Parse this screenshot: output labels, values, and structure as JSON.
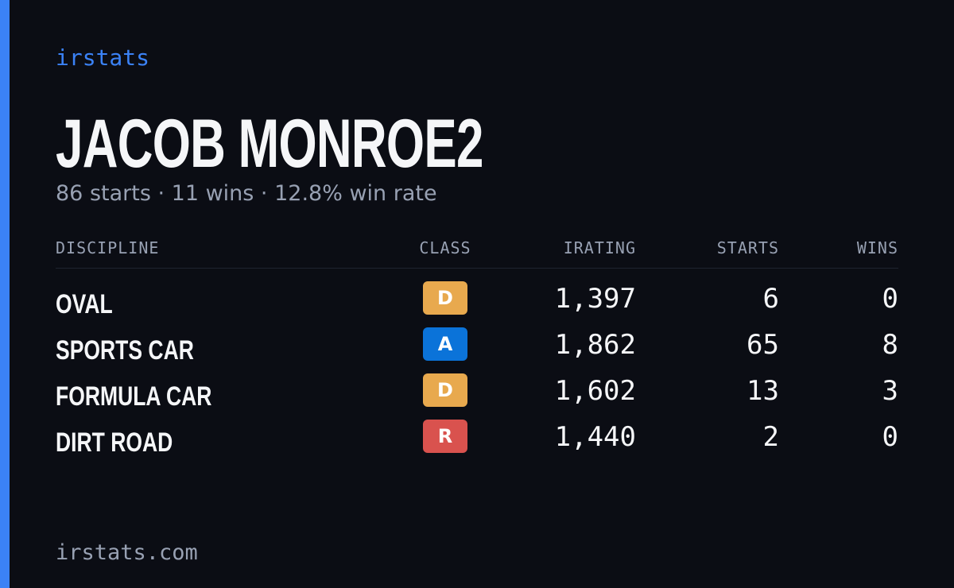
{
  "brand": "irstats",
  "title": "JACOB MONROE2",
  "subtitle": "86 starts · 11 wins · 12.8% win rate",
  "table": {
    "headers": [
      "DISCIPLINE",
      "CLASS",
      "IRATING",
      "STARTS",
      "WINS"
    ],
    "rows": [
      [
        "OVAL",
        "D",
        "1,397",
        "6",
        "0"
      ],
      [
        "SPORTS CAR",
        "A",
        "1,862",
        "65",
        "8"
      ],
      [
        "FORMULA CAR",
        "D",
        "1,602",
        "13",
        "3"
      ],
      [
        "DIRT ROAD",
        "R",
        "1,440",
        "2",
        "0"
      ]
    ],
    "class_colors": [
      "#e8a94e",
      "#0b73d9",
      "#e8a94e",
      "#d9524e"
    ]
  },
  "footer": "irstats.com"
}
